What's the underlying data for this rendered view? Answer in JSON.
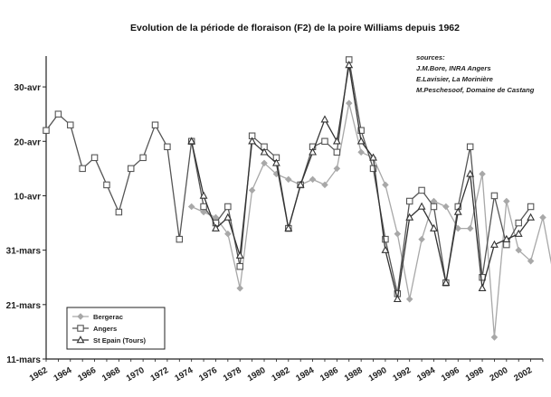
{
  "chart_data": {
    "type": "line",
    "title": "Evolution de la période de floraison (F2) de la poire Williams depuis 1962",
    "xlabel": "",
    "ylabel": "",
    "x_ticks": [
      "1962",
      "1964",
      "1966",
      "1968",
      "1970",
      "1972",
      "1974",
      "1976",
      "1978",
      "1980",
      "1982",
      "1984",
      "1986",
      "1988",
      "1990",
      "1992",
      "1994",
      "1996",
      "1998",
      "2000",
      "2002"
    ],
    "y_ticks": [
      {
        "label": "11-mars",
        "value": 0
      },
      {
        "label": "21-mars",
        "value": 10
      },
      {
        "label": "31-mars",
        "value": 20
      },
      {
        "label": "10-avr",
        "value": 30
      },
      {
        "label": "20-avr",
        "value": 40
      },
      {
        "label": "30-avr",
        "value": 50
      }
    ],
    "x_range": [
      1962,
      2003
    ],
    "y_range": [
      0,
      55
    ],
    "grid": false,
    "legend_position": "bottom-left",
    "sources": [
      "sources:",
      "J.M.Bore, INRA Angers",
      "E.Lavisier, La Morinière",
      "M.Peschesoof, Domaine de Castang"
    ],
    "series": [
      {
        "name": "Bergerac",
        "color": "#a8a8a8",
        "marker": "diamond",
        "points": [
          [
            1974,
            28
          ],
          [
            1975,
            27
          ],
          [
            1976,
            26
          ],
          [
            1977,
            23
          ],
          [
            1978,
            13
          ],
          [
            1979,
            31
          ],
          [
            1980,
            36
          ],
          [
            1981,
            34
          ],
          [
            1982,
            33
          ],
          [
            1983,
            32
          ],
          [
            1984,
            33
          ],
          [
            1985,
            32
          ],
          [
            1986,
            35
          ],
          [
            1987,
            47
          ],
          [
            1988,
            38
          ],
          [
            1989,
            37
          ],
          [
            1990,
            32
          ],
          [
            1991,
            23
          ],
          [
            1992,
            11
          ],
          [
            1993,
            22
          ],
          [
            1994,
            29
          ],
          [
            1995,
            28
          ],
          [
            1996,
            24
          ],
          [
            1997,
            24
          ],
          [
            1998,
            34
          ],
          [
            1999,
            4
          ],
          [
            2000,
            29
          ],
          [
            2001,
            20
          ],
          [
            2002,
            18
          ],
          [
            2003,
            26
          ],
          [
            2004,
            14
          ]
        ]
      },
      {
        "name": "Angers",
        "color": "#555555",
        "marker": "square",
        "points": [
          [
            1962,
            42
          ],
          [
            1963,
            45
          ],
          [
            1964,
            43
          ],
          [
            1965,
            35
          ],
          [
            1966,
            37
          ],
          [
            1967,
            32
          ],
          [
            1968,
            27
          ],
          [
            1969,
            35
          ],
          [
            1970,
            37
          ],
          [
            1971,
            43
          ],
          [
            1972,
            39
          ],
          [
            1973,
            22
          ],
          [
            1974,
            40
          ],
          [
            1975,
            28
          ],
          [
            1976,
            25
          ],
          [
            1977,
            28
          ],
          [
            1978,
            17
          ],
          [
            1979,
            41
          ],
          [
            1980,
            39
          ],
          [
            1981,
            37
          ],
          [
            1982,
            24
          ],
          [
            1983,
            32
          ],
          [
            1984,
            39
          ],
          [
            1985,
            40
          ],
          [
            1986,
            38
          ],
          [
            1987,
            55
          ],
          [
            1988,
            42
          ],
          [
            1989,
            35
          ],
          [
            1990,
            22
          ],
          [
            1991,
            12
          ],
          [
            1992,
            29
          ],
          [
            1993,
            31
          ],
          [
            1994,
            28
          ],
          [
            1995,
            14
          ],
          [
            1996,
            28
          ],
          [
            1997,
            39
          ],
          [
            1998,
            15
          ],
          [
            1999,
            30
          ],
          [
            2000,
            21
          ],
          [
            2001,
            25
          ],
          [
            2002,
            28
          ]
        ]
      },
      {
        "name": "St Epain (Tours)",
        "color": "#333333",
        "marker": "triangle",
        "points": [
          [
            1974,
            40
          ],
          [
            1975,
            30
          ],
          [
            1976,
            24
          ],
          [
            1977,
            26
          ],
          [
            1978,
            19
          ],
          [
            1979,
            40
          ],
          [
            1980,
            38
          ],
          [
            1981,
            36
          ],
          [
            1982,
            24
          ],
          [
            1983,
            32
          ],
          [
            1984,
            38
          ],
          [
            1985,
            44
          ],
          [
            1986,
            40
          ],
          [
            1987,
            54
          ],
          [
            1988,
            40
          ],
          [
            1989,
            37
          ],
          [
            1990,
            20
          ],
          [
            1991,
            11
          ],
          [
            1992,
            26
          ],
          [
            1993,
            28
          ],
          [
            1994,
            24
          ],
          [
            1995,
            14
          ],
          [
            1996,
            27
          ],
          [
            1997,
            34
          ],
          [
            1998,
            13
          ],
          [
            1999,
            21
          ],
          [
            2000,
            22
          ],
          [
            2001,
            23
          ],
          [
            2002,
            26
          ]
        ]
      }
    ]
  }
}
